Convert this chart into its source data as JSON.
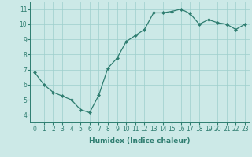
{
  "x": [
    0,
    1,
    2,
    3,
    4,
    5,
    6,
    7,
    8,
    9,
    10,
    11,
    12,
    13,
    14,
    15,
    16,
    17,
    18,
    19,
    20,
    21,
    22,
    23
  ],
  "y": [
    6.8,
    6.0,
    5.5,
    5.25,
    5.0,
    4.35,
    4.15,
    5.3,
    7.1,
    7.75,
    8.85,
    9.25,
    9.65,
    10.75,
    10.75,
    10.85,
    11.0,
    10.7,
    10.0,
    10.3,
    10.1,
    10.0,
    9.65,
    10.0
  ],
  "xlabel": "Humidex (Indice chaleur)",
  "xlim": [
    -0.5,
    23.5
  ],
  "ylim": [
    3.5,
    11.5
  ],
  "yticks": [
    4,
    5,
    6,
    7,
    8,
    9,
    10,
    11
  ],
  "xticks": [
    0,
    1,
    2,
    3,
    4,
    5,
    6,
    7,
    8,
    9,
    10,
    11,
    12,
    13,
    14,
    15,
    16,
    17,
    18,
    19,
    20,
    21,
    22,
    23
  ],
  "line_color": "#2e7d70",
  "marker_color": "#2e7d70",
  "bg_color": "#cce9e7",
  "grid_color": "#9ecfcc",
  "xlabel_fontsize": 6.5,
  "tick_fontsize": 5.5,
  "linewidth": 0.9,
  "markersize": 2.0
}
